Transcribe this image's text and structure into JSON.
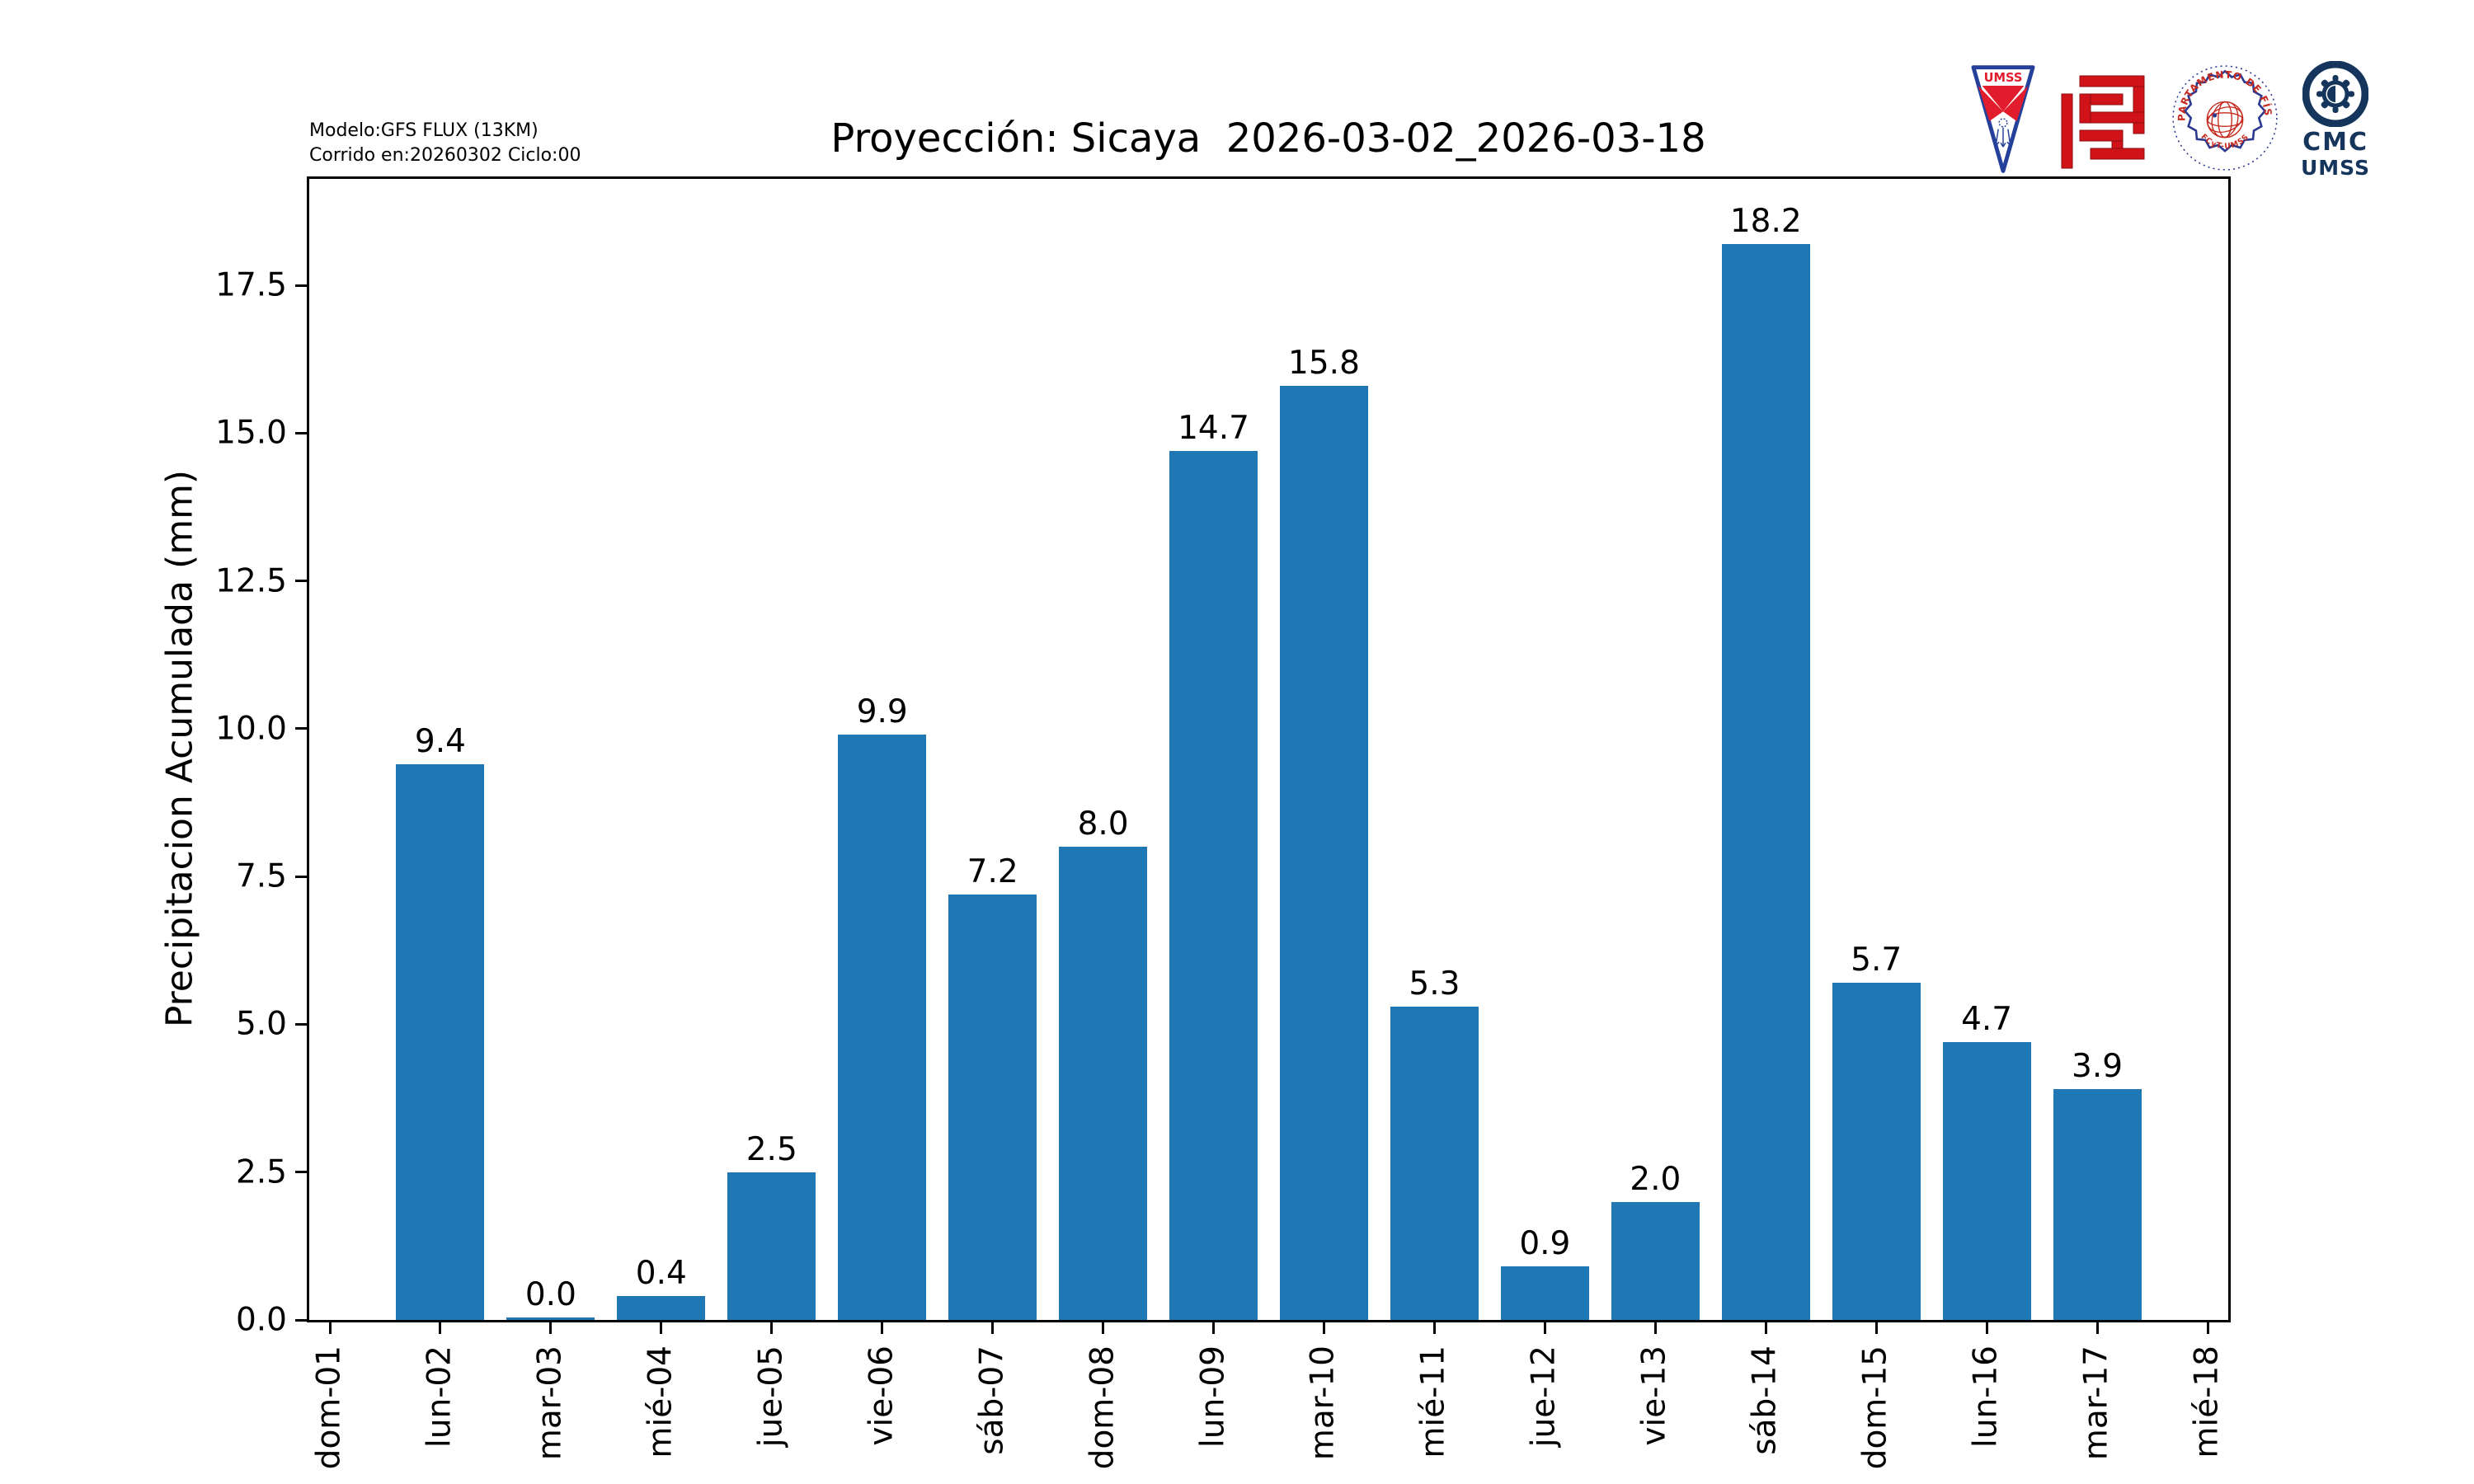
{
  "header": {
    "model_info_line1": "Modelo:GFS FLUX (13KM)",
    "model_info_line2": "Corrido en:20260302 Ciclo:00",
    "title": "Proyección: Sicaya  2026-03-02_2026-03-18"
  },
  "logos": {
    "umss_pennant_text": "UMSS",
    "fisica_seal_top_text": "DEPARTAMENTO DE FÍSICA",
    "fisica_seal_bottom_text": "FCyT-UMSS",
    "cmc_line1": "CMC",
    "cmc_line2": "UMSS"
  },
  "colors": {
    "bar": "#1f77b4",
    "axis": "#000000",
    "logo_red": "#d01219",
    "pennant_red": "#e11c2c",
    "pennant_blue": "#24409a",
    "seal_blue": "#2b3990",
    "seal_red": "#c5281c",
    "cmc_navy": "#16355c"
  },
  "chart_data": {
    "type": "bar",
    "title": "Proyección: Sicaya  2026-03-02_2026-03-18",
    "xlabel": "",
    "ylabel": "Precipitacion Acumulada (mm)",
    "categories": [
      "dom-01",
      "lun-02",
      "mar-03",
      "mié-04",
      "jue-05",
      "vie-06",
      "sáb-07",
      "dom-08",
      "lun-09",
      "mar-10",
      "mié-11",
      "jue-12",
      "vie-13",
      "sáb-14",
      "dom-15",
      "lun-16",
      "mar-17",
      "mié-18"
    ],
    "values": [
      null,
      9.4,
      0.0,
      0.4,
      2.5,
      9.9,
      7.2,
      8.0,
      14.7,
      15.8,
      5.3,
      0.9,
      2.0,
      18.2,
      5.7,
      4.7,
      3.9,
      null
    ],
    "bar_value_labels": [
      "",
      "9.4",
      "0.0",
      "0.4",
      "2.5",
      "9.9",
      "7.2",
      "8.0",
      "14.7",
      "15.8",
      "5.3",
      "0.9",
      "2.0",
      "18.2",
      "5.7",
      "4.7",
      "3.9",
      ""
    ],
    "yticks": [
      0,
      2.5,
      5,
      7.5,
      10,
      12.5,
      15,
      17.5
    ],
    "ytick_labels": [
      "0.0",
      "2.5",
      "5.0",
      "7.5",
      "10.0",
      "12.5",
      "15.0",
      "17.5"
    ],
    "ylim": [
      0,
      19.3
    ],
    "bar_color": "#1f77b4",
    "grid": false,
    "legend": null
  }
}
